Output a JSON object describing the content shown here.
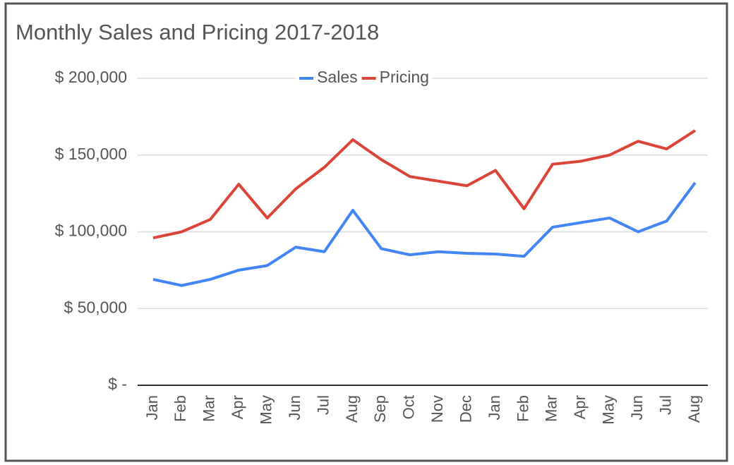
{
  "chart_data": {
    "type": "line",
    "title": "Monthly Sales and Pricing 2017-2018",
    "categories": [
      "Jan",
      "Feb",
      "Mar",
      "Apr",
      "May",
      "Jun",
      "Jul",
      "Aug",
      "Sep",
      "Oct",
      "Nov",
      "Dec",
      "Jan",
      "Feb",
      "Mar",
      "Apr",
      "May",
      "Jun",
      "Jul",
      "Aug"
    ],
    "series": [
      {
        "name": "Sales",
        "color": "#4285f4",
        "values": [
          69000,
          65000,
          69000,
          75000,
          78000,
          90000,
          87000,
          114000,
          89000,
          85000,
          87000,
          86000,
          85500,
          84000,
          103000,
          106000,
          109000,
          100000,
          107000,
          132000
        ]
      },
      {
        "name": "Pricing",
        "color": "#db4437",
        "values": [
          96000,
          100000,
          108000,
          131000,
          109000,
          128000,
          142000,
          160000,
          147000,
          136000,
          133000,
          130000,
          140000,
          115000,
          144000,
          146000,
          150000,
          159000,
          154000,
          166000
        ]
      }
    ],
    "ylim": [
      0,
      200000
    ],
    "yticks": [
      {
        "value": 0,
        "label": "$ -"
      },
      {
        "value": 50000,
        "label": "$ 50,000"
      },
      {
        "value": 100000,
        "label": "$ 100,000"
      },
      {
        "value": 150000,
        "label": "$ 150,000"
      },
      {
        "value": 200000,
        "label": "$ 200,000"
      }
    ],
    "grid": true,
    "legend": "top"
  }
}
